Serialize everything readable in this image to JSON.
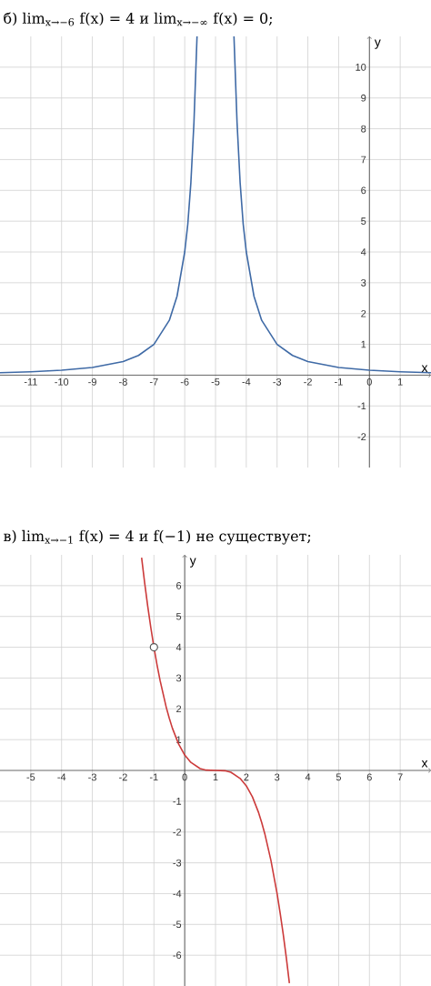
{
  "chart_data": [
    {
      "type": "line",
      "title": "б) lim$_{x→−6}$ f(x) = 4  и  lim$_{x→−∞}$ f(x) = 0;",
      "xlabel": "x",
      "ylabel": "y",
      "xlim": [
        -12,
        2
      ],
      "ylim": [
        -3,
        11
      ],
      "grid": true,
      "xticks": [
        -11,
        -10,
        -9,
        -8,
        -7,
        -6,
        -5,
        -4,
        -3,
        -2,
        -1,
        0,
        1
      ],
      "yticks": [
        -2,
        -1,
        1,
        2,
        3,
        4,
        5,
        6,
        7,
        8,
        9,
        10
      ],
      "series": [
        {
          "marker": "none",
          "color": "#3f6aa6",
          "x": [
            -12,
            -11,
            -10,
            -9,
            -8,
            -7.5,
            -7,
            -6.5,
            -6.25,
            -6,
            -5.9,
            -5.8,
            -5.7,
            -5.6
          ],
          "values": [
            0.08,
            0.11,
            0.16,
            0.25,
            0.44,
            0.64,
            1,
            1.78,
            2.56,
            4,
            4.9,
            6.25,
            8.2,
            11
          ]
        },
        {
          "marker": "none",
          "color": "#3f6aa6",
          "x": [
            -4.4,
            -4.3,
            -4.2,
            -4.1,
            -4,
            -3.75,
            -3.5,
            -3,
            -2.5,
            -2,
            -1,
            0,
            1,
            2
          ],
          "values": [
            11,
            8.2,
            6.25,
            4.9,
            4,
            2.56,
            1.78,
            1,
            0.64,
            0.44,
            0.25,
            0.16,
            0.11,
            0.08
          ]
        }
      ]
    },
    {
      "type": "line",
      "title": "в) lim$_{x→−1}$ f(x) = 4  и  f(−1) не существует;",
      "xlabel": "x",
      "ylabel": "y",
      "xlim": [
        -6,
        8
      ],
      "ylim": [
        -7,
        7
      ],
      "grid": true,
      "xticks": [
        -5,
        -4,
        -3,
        -2,
        -1,
        0,
        1,
        2,
        3,
        4,
        5,
        6,
        7
      ],
      "yticks": [
        -6,
        -5,
        -4,
        -3,
        -2,
        -1,
        1,
        2,
        3,
        4,
        5,
        6
      ],
      "series": [
        {
          "marker": "none",
          "color": "#cc3b3b",
          "x": [
            -1.4,
            -1.3,
            -1.2,
            -1.1,
            -1,
            -0.9,
            -0.8,
            -0.6,
            -0.5,
            -0.4,
            -0.2,
            0,
            0.2,
            0.5,
            0.7,
            1,
            1.3,
            1.5,
            1.8,
            2,
            2.2,
            2.4,
            2.5,
            2.6,
            2.8,
            3,
            3.1,
            3.2,
            3.3,
            3.4
          ],
          "values": [
            6.91,
            6.08,
            5.32,
            4.63,
            4,
            3.43,
            2.92,
            2.05,
            1.69,
            1.37,
            0.86,
            0.5,
            0.26,
            0.06,
            0.01,
            0,
            -0.01,
            -0.06,
            -0.26,
            -0.5,
            -0.86,
            -1.37,
            -1.69,
            -2.05,
            -2.92,
            -4,
            -4.63,
            -5.32,
            -6.08,
            -6.91
          ]
        },
        {
          "type": "scatter",
          "marker": "circle",
          "color": "#555555",
          "x": [
            -1
          ],
          "values": [
            4
          ]
        }
      ]
    }
  ]
}
